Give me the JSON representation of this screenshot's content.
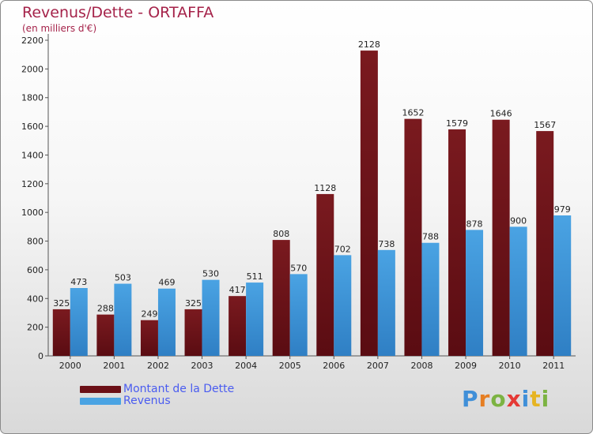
{
  "title": "Revenus/Dette - ORTAFFA",
  "subtitle": "(en milliers d'€)",
  "colors": {
    "debt": "#7a1a1f",
    "debt_dark": "#5a0c12",
    "revenue": "#4aa3e3",
    "revenue_dark": "#2f7fc4",
    "title": "#a5234a",
    "legend_text": "#4a5cf0",
    "axis_text": "#222222"
  },
  "legend": [
    {
      "label": "Montant de la Dette",
      "color": "#6b0f16"
    },
    {
      "label": "Revenus",
      "color": "#4aa3e3"
    }
  ],
  "logo": {
    "letters": [
      "P",
      "r",
      "o",
      "x",
      "i",
      "t",
      "i"
    ],
    "colors": [
      "#3f8fd8",
      "#e67e22",
      "#7cb342",
      "#e53935",
      "#3f8fd8",
      "#e6b422",
      "#7cb342"
    ]
  },
  "chart_data": {
    "type": "bar",
    "title": "Revenus/Dette - ORTAFFA",
    "subtitle": "(en milliers d'€)",
    "categories": [
      "2000",
      "2001",
      "2002",
      "2003",
      "2004",
      "2005",
      "2006",
      "2007",
      "2008",
      "2009",
      "2010",
      "2011"
    ],
    "series": [
      {
        "name": "Montant de la Dette",
        "values": [
          325,
          288,
          249,
          325,
          417,
          808,
          1128,
          2128,
          1652,
          1579,
          1646,
          1567
        ]
      },
      {
        "name": "Revenus",
        "values": [
          473,
          503,
          469,
          530,
          511,
          570,
          702,
          738,
          788,
          878,
          900,
          979
        ]
      }
    ],
    "yticks": [
      0,
      200,
      400,
      600,
      800,
      1000,
      1200,
      1400,
      1600,
      1800,
      2000,
      2200
    ],
    "ylim": [
      0,
      2200
    ],
    "grid": false,
    "legend_position": "bottom-left"
  }
}
